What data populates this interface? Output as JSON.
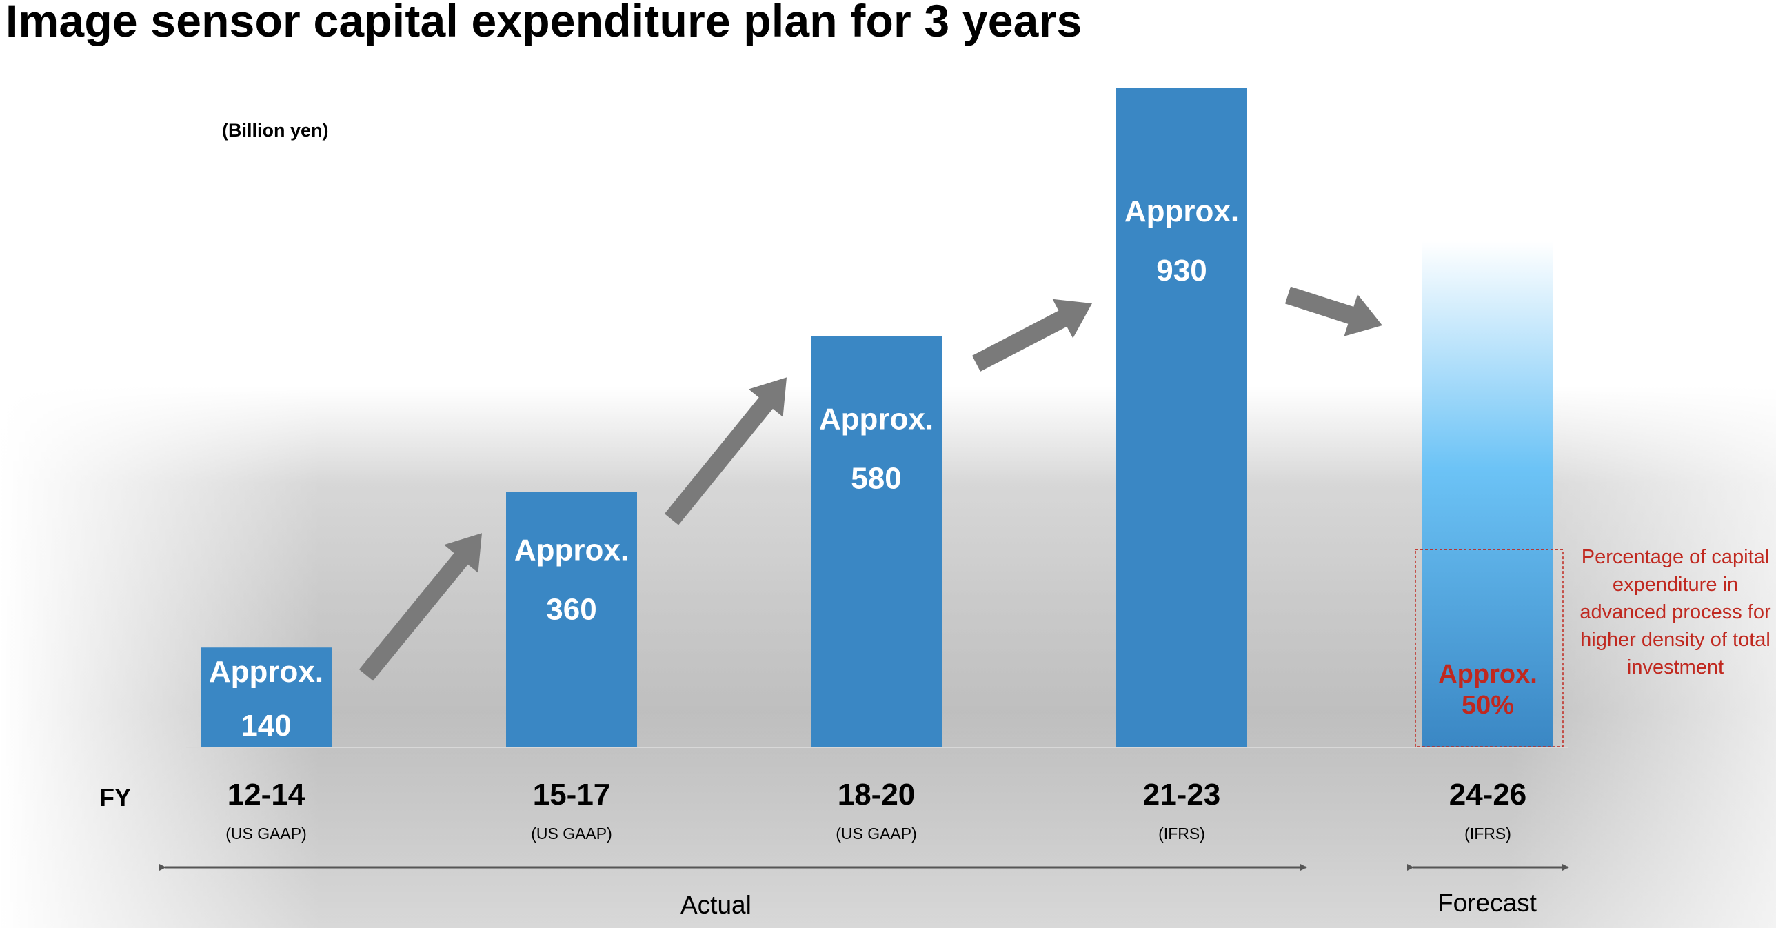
{
  "title": "Image sensor capital expenditure plan for 3 years",
  "unit": "(Billion yen)",
  "fy_label": "FY",
  "colors": {
    "bar": "#3a87c4",
    "forecast_top": "#ffffff",
    "forecast_mid": "#6cc3f6",
    "forecast_bottom": "#3a87c4",
    "arrow": "#7a7a7a",
    "bar_text": "#ffffff",
    "accent_red": "#c0281f"
  },
  "chart_data": {
    "type": "bar",
    "title": "Image sensor capital expenditure plan for 3 years",
    "ylabel": "(Billion yen)",
    "xlabel": "FY",
    "categories": [
      "12-14",
      "15-17",
      "18-20",
      "21-23",
      "24-26"
    ],
    "sublabels": [
      "(US GAAP)",
      "(US GAAP)",
      "(US GAAP)",
      "(IFRS)",
      "(IFRS)"
    ],
    "values": [
      140,
      360,
      580,
      930,
      null
    ],
    "value_prefix": "Approx.",
    "value_labels": [
      "140",
      "360",
      "580",
      "930",
      ""
    ],
    "forecast_share": {
      "prefix": "Approx.",
      "value_label": "50%",
      "value_percent": 50
    },
    "ylim": [
      0,
      930
    ],
    "grid": false,
    "legend": "none"
  },
  "periods": {
    "actual": "Actual",
    "forecast": "Forecast"
  },
  "note": "Percentage of capital expenditure in advanced process for higher density of total investment"
}
